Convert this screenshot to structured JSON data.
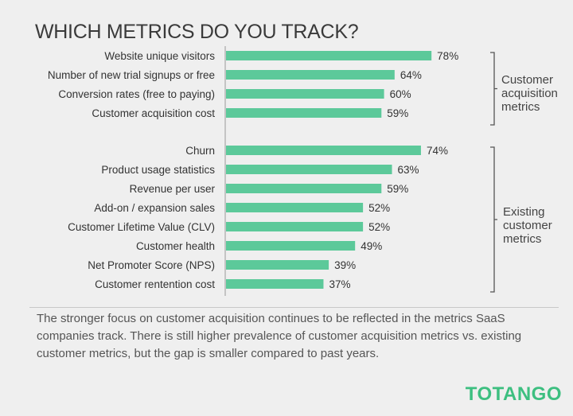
{
  "chart_data": {
    "type": "bar",
    "orientation": "horizontal",
    "title": "WHICH METRICS DO YOU TRACK?",
    "categories": [
      "Website unique visitors",
      "Number of new trial signups or free",
      "Conversion rates (free to paying)",
      "Customer acquisition cost",
      "Churn",
      "Product usage statistics",
      "Revenue per user",
      "Add-on / expansion sales",
      "Customer Lifetime Value (CLV)",
      "Customer health",
      "Net Promoter Score (NPS)",
      "Customer rentention cost"
    ],
    "values": [
      78,
      64,
      60,
      59,
      74,
      63,
      59,
      52,
      52,
      49,
      39,
      37
    ],
    "value_labels": [
      "78%",
      "64%",
      "60%",
      "59%",
      "74%",
      "63%",
      "59%",
      "52%",
      "52%",
      "49%",
      "39%",
      "37%"
    ],
    "groups": [
      {
        "label": "Customer acquisition metrics",
        "lines": [
          "Customer",
          "acquisition",
          "metrics"
        ],
        "count": 4
      },
      {
        "label": "Existing customer metrics",
        "lines": [
          "Existing",
          "customer",
          "metrics"
        ],
        "count": 8
      }
    ],
    "bar_color": "#5cc99a",
    "grid": false
  },
  "note": "The stronger focus on customer acquisition continues to be reflected in the metrics SaaS companies track.  There is still higher prevalence of customer acquisition metrics vs. existing customer metrics, but the gap is smaller compared to past years.",
  "logo": "TOTANGO"
}
